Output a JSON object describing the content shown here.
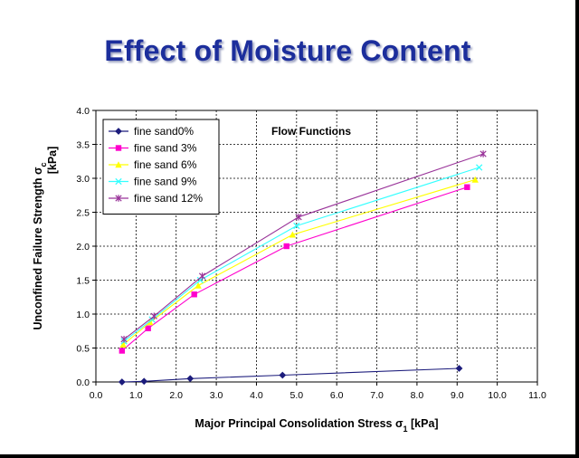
{
  "slide": {
    "title": "Effect of Moisture Content"
  },
  "chart_data": {
    "type": "line",
    "title": "",
    "annotation": "Flow Functions",
    "xlabel": "Major Principal Consolidation Stress σ",
    "xlabel_sub": "1",
    "xlabel_suffix": " [kPa]",
    "ylabel": "Unconfined Failure Strength σ",
    "ylabel_sub": "c",
    "ylabel_unit": "[kPa]",
    "xlim": [
      0,
      11
    ],
    "ylim": [
      0,
      4
    ],
    "xticks": [
      0,
      1,
      2,
      3,
      4,
      5,
      6,
      7,
      8,
      9,
      10,
      11
    ],
    "xtick_labels": [
      "0.0",
      "1.0",
      "2.0",
      "3.0",
      "4.0",
      "5.0",
      "6.0",
      "7.0",
      "8.0",
      "9.0",
      "10.0",
      "11.0"
    ],
    "yticks": [
      0,
      0.5,
      1,
      1.5,
      2,
      2.5,
      3,
      3.5,
      4
    ],
    "ytick_labels": [
      "0.0",
      "0.5",
      "1.0",
      "1.5",
      "2.0",
      "2.5",
      "3.0",
      "3.5",
      "4.0"
    ],
    "grid": true,
    "legend_position": "top-left",
    "series": [
      {
        "name": "fine sand0%",
        "color": "#1c1c7c",
        "marker": "diamond",
        "x": [
          0.65,
          1.2,
          2.35,
          4.65,
          9.05
        ],
        "y": [
          0.0,
          0.01,
          0.05,
          0.1,
          0.2
        ]
      },
      {
        "name": "fine sand 3%",
        "color": "#ff00cc",
        "marker": "square",
        "x": [
          0.65,
          1.3,
          2.45,
          4.75,
          9.25
        ],
        "y": [
          0.46,
          0.79,
          1.29,
          2.0,
          2.87
        ]
      },
      {
        "name": "fine sand 6%",
        "color": "#ffff00",
        "marker": "triangle",
        "x": [
          0.68,
          1.35,
          2.55,
          4.9,
          9.45
        ],
        "y": [
          0.55,
          0.88,
          1.42,
          2.17,
          2.98
        ]
      },
      {
        "name": "fine sand 9%",
        "color": "#33ffff",
        "marker": "x",
        "x": [
          0.7,
          1.4,
          2.6,
          5.0,
          9.55
        ],
        "y": [
          0.6,
          0.92,
          1.5,
          2.3,
          3.16
        ]
      },
      {
        "name": "fine sand 12%",
        "color": "#993399",
        "marker": "star",
        "x": [
          0.7,
          1.45,
          2.65,
          5.05,
          9.65
        ],
        "y": [
          0.63,
          0.97,
          1.56,
          2.43,
          3.36
        ]
      }
    ]
  }
}
